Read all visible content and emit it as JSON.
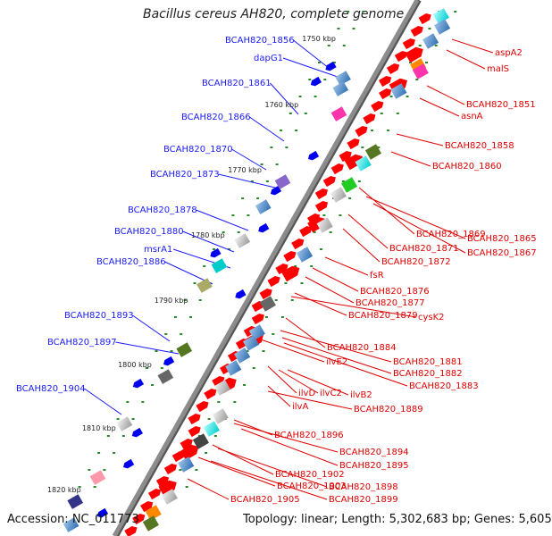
{
  "title": "Bacillus cereus AH820, complete genome",
  "footer": {
    "accession": "Accession: NC_011773",
    "stats": "Topology: linear; Length: 5,302,683 bp; Genes: 5,605"
  },
  "ticks": [
    "1750 kbp",
    "1760 kbp",
    "1770 kbp",
    "1780 kbp",
    "1790 kbp",
    "1800 kbp",
    "1810 kbp",
    "1820 kbp"
  ],
  "labels_left": [
    "BCAH820_1856",
    "dapG1",
    "BCAH820_1861",
    "BCAH820_1866",
    "BCAH820_1870",
    "BCAH820_1873",
    "BCAH820_1878",
    "BCAH820_1880",
    "msrA1",
    "BCAH820_1886",
    "BCAH820_1893",
    "BCAH820_1897",
    "BCAH820_1904"
  ],
  "labels_right": [
    "aspA2",
    "malS",
    "BCAH820_1851",
    "asnA",
    "BCAH820_1858",
    "BCAH820_1860",
    "BCAH820_1869",
    "BCAH820_1865",
    "BCAH820_1867",
    "BCAH820_1871",
    "BCAH820_1872",
    "fsR",
    "BCAH820_1876",
    "BCAH820_1877",
    "BCAH820_1879",
    "cysK2",
    "BCAH820_1884",
    "BCAH820_1881",
    "BCAH820_1882",
    "BCAH820_1883",
    "ilvE2",
    "ilvD",
    "ilvC2",
    "ilvB2",
    "ilvA",
    "BCAH820_1889",
    "BCAH820_1896",
    "BCAH820_1894",
    "BCAH820_1895",
    "BCAH820_1902",
    "BCAH820_1898",
    "BCAH820_1903",
    "BCAH820_1899",
    "BCAH820_1905"
  ],
  "colors": {
    "backbone": "#8c8c8c",
    "gene_red": "#ff0000",
    "gene_blue": "#0000ee",
    "dot_green": "#2a8a2a",
    "label_blue": "#1a1aff",
    "label_red": "#e00000"
  }
}
